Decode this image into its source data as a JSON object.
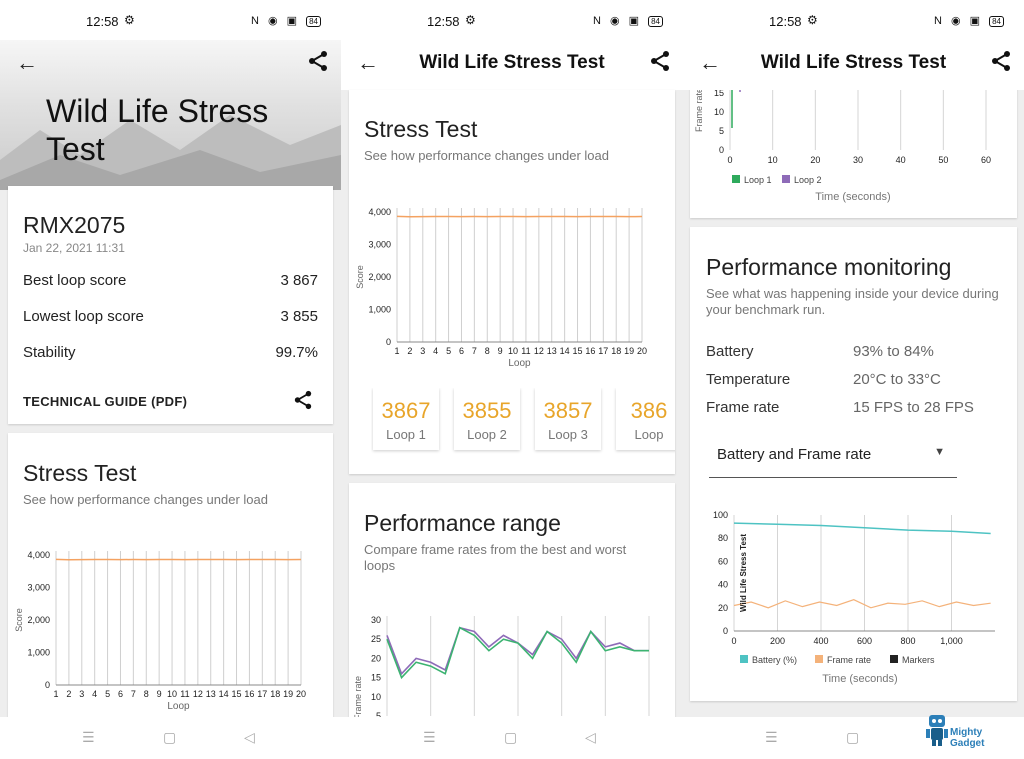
{
  "status": {
    "time": "12:58",
    "battery": "84"
  },
  "panel1": {
    "hero_title": "Wild Life Stress Test",
    "device": "RMX2075",
    "date": "Jan 22, 2021 11:31",
    "rows": [
      {
        "label": "Best loop score",
        "value": "3 867"
      },
      {
        "label": "Lowest loop score",
        "value": "3 855"
      },
      {
        "label": "Stability",
        "value": "99.7%"
      }
    ],
    "guide_label": "TECHNICAL GUIDE (PDF)",
    "stress_title": "Stress Test",
    "stress_sub": "See how performance changes under load"
  },
  "panel2": {
    "appbar_title": "Wild Life Stress Test",
    "stress_title": "Stress Test",
    "stress_sub": "See how performance changes under load",
    "loops": [
      {
        "score": "3867",
        "label": "Loop 1"
      },
      {
        "score": "3855",
        "label": "Loop 2"
      },
      {
        "score": "3857",
        "label": "Loop 3"
      },
      {
        "score": "386",
        "label": "Loop"
      }
    ],
    "range_title": "Performance range",
    "range_sub": "Compare frame rates from the best and worst loops"
  },
  "panel3": {
    "appbar_title": "Wild Life Stress Test",
    "monitor_title": "Performance monitoring",
    "monitor_sub": "See what was happening inside your device during your benchmark run.",
    "rows": [
      {
        "label": "Battery",
        "value": "93% to 84%"
      },
      {
        "label": "Temperature",
        "value": "20°C to 33°C"
      },
      {
        "label": "Frame rate",
        "value": "15 FPS to 28 FPS"
      }
    ],
    "dropdown": "Battery and Frame rate"
  },
  "watermark": "Mighty Gadget",
  "chart_data": [
    {
      "type": "line",
      "ylabel": "Score",
      "xlabel": "Loop",
      "categories": [
        1,
        2,
        3,
        4,
        5,
        6,
        7,
        8,
        9,
        10,
        11,
        12,
        13,
        14,
        15,
        16,
        17,
        18,
        19,
        20
      ],
      "ylim": [
        0,
        4000
      ],
      "yticks": [
        "0",
        "1,000",
        "2,000",
        "3,000",
        "4,000"
      ],
      "series": [
        {
          "values": [
            3867,
            3855,
            3857,
            3860,
            3862,
            3858,
            3861,
            3859,
            3863,
            3860,
            3858,
            3862,
            3861,
            3860,
            3859,
            3862,
            3860,
            3861,
            3858,
            3860
          ],
          "color": "#f4a261"
        }
      ]
    },
    {
      "type": "line",
      "ylabel": "Frame rate",
      "ylim": [
        5,
        30
      ],
      "yticks": [
        "5",
        "10",
        "15",
        "20",
        "25",
        "30"
      ],
      "series": [
        {
          "values": [
            26,
            16,
            20,
            19,
            17,
            28,
            27,
            23,
            26,
            24,
            21,
            27,
            25,
            20,
            27,
            23,
            24,
            22,
            22
          ],
          "color": "#8e6bb8"
        },
        {
          "values": [
            25,
            15,
            19,
            18,
            16,
            28,
            26,
            22,
            25,
            24,
            20,
            27,
            24,
            19,
            27,
            22,
            23,
            22,
            22
          ],
          "color": "#3cb371"
        }
      ]
    },
    {
      "type": "line",
      "ylabel": "Frame rate",
      "xlabel": "Time (seconds)",
      "xticks": [
        "0",
        "10",
        "20",
        "30",
        "40",
        "50",
        "60"
      ],
      "yticks": [
        "0",
        "5",
        "10",
        "15"
      ],
      "legend": [
        "Loop 1",
        "Loop 2"
      ],
      "legend_colors": [
        "#2eaa5c",
        "#8e6bb8"
      ]
    },
    {
      "type": "line",
      "title": "Wild Life Stress Test",
      "xlabel": "Time (seconds)",
      "xticks": [
        "0",
        "200",
        "400",
        "600",
        "800",
        "1,000"
      ],
      "yticks": [
        "0",
        "20",
        "40",
        "60",
        "80",
        "100"
      ],
      "ylim": [
        0,
        100
      ],
      "legend": [
        "Battery (%)",
        "Frame rate",
        "Markers"
      ],
      "legend_colors": [
        "#4ec3c3",
        "#f4b27a",
        "#222222"
      ],
      "series": [
        {
          "name": "Battery (%)",
          "x": [
            0,
            200,
            400,
            600,
            800,
            1000,
            1180
          ],
          "values": [
            93,
            92,
            91,
            89,
            87,
            86,
            84
          ]
        },
        {
          "name": "Frame rate",
          "values": [
            22,
            25,
            20,
            26,
            21,
            25,
            22,
            27,
            20,
            24,
            23,
            26,
            21,
            25,
            22,
            24
          ]
        }
      ]
    }
  ]
}
